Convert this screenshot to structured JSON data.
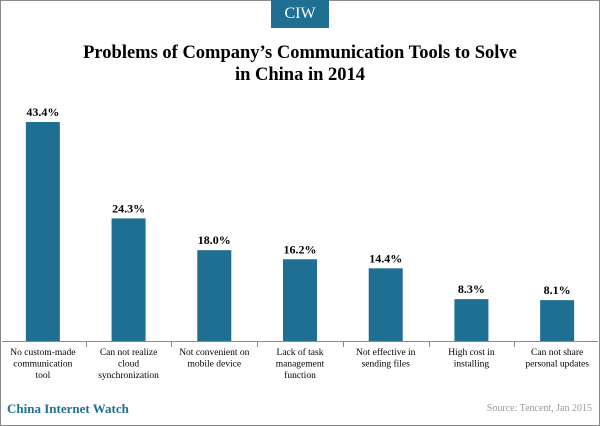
{
  "brand_badge": "CIW",
  "title_line1": "Problems of Company’s Communication Tools to Solve",
  "title_line2": "in China in 2014",
  "footer": {
    "brand": "China Internet Watch",
    "source": "Source: Tencent,  Jan 2015"
  },
  "colors": {
    "bar": "#1f6f93",
    "accent": "#1f6f93"
  },
  "chart_data": {
    "type": "bar",
    "title": "Problems of Company’s Communication Tools to Solve in China in 2014",
    "categories": [
      [
        "No custom-made",
        "communication",
        "tool"
      ],
      [
        "Can not realize",
        "cloud",
        "synchronization"
      ],
      [
        "Not convenient on",
        "mobile device"
      ],
      [
        "Lack of task",
        "management",
        "function"
      ],
      [
        "Not effective in",
        "sending files"
      ],
      [
        "High cost in",
        "installing"
      ],
      [
        "Can not share",
        "personal updates"
      ]
    ],
    "values": [
      43.4,
      24.3,
      18.0,
      16.2,
      14.4,
      8.3,
      8.1
    ],
    "value_labels": [
      "43.4%",
      "24.3%",
      "18.0%",
      "16.2%",
      "14.4%",
      "8.3%",
      "8.1%"
    ],
    "unit": "%",
    "xlabel": "",
    "ylabel": "",
    "ylim": [
      0,
      43.4
    ],
    "grid": false,
    "legend": "none"
  }
}
